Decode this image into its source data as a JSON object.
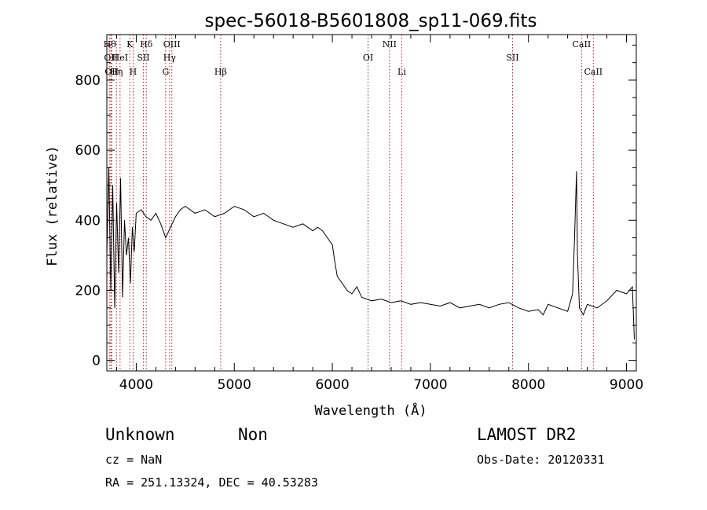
{
  "chart_data": {
    "type": "line",
    "title": "spec-56018-B5601808_sp11-069.fits",
    "xlabel": "Wavelength (Å)",
    "ylabel": "Flux (relative)",
    "xlim": [
      3700,
      9100
    ],
    "ylim": [
      -30,
      930
    ],
    "xticks": [
      4000,
      5000,
      6000,
      7000,
      8000,
      9000
    ],
    "yticks": [
      0,
      200,
      400,
      600,
      800
    ],
    "grid": false,
    "series": [
      {
        "values_description_free": true,
        "x": [
          3700,
          3720,
          3740,
          3760,
          3780,
          3800,
          3820,
          3840,
          3860,
          3880,
          3900,
          3920,
          3940,
          3960,
          3980,
          4000,
          4050,
          4100,
          4150,
          4200,
          4250,
          4300,
          4350,
          4400,
          4450,
          4500,
          4600,
          4700,
          4800,
          4900,
          5000,
          5100,
          5200,
          5300,
          5400,
          5500,
          5600,
          5700,
          5800,
          5850,
          5900,
          5950,
          6000,
          6020,
          6050,
          6100,
          6150,
          6200,
          6250,
          6300,
          6400,
          6500,
          6600,
          6700,
          6800,
          6900,
          7000,
          7100,
          7200,
          7300,
          7400,
          7500,
          7600,
          7700,
          7800,
          7900,
          8000,
          8100,
          8150,
          8200,
          8300,
          8400,
          8450,
          8470,
          8490,
          8500,
          8520,
          8560,
          8600,
          8700,
          8800,
          8900,
          9000,
          9060,
          9080
        ],
        "y": [
          300,
          550,
          200,
          500,
          150,
          450,
          250,
          520,
          180,
          400,
          300,
          350,
          220,
          380,
          310,
          420,
          430,
          410,
          400,
          420,
          390,
          350,
          380,
          410,
          430,
          440,
          420,
          430,
          410,
          420,
          440,
          430,
          410,
          420,
          400,
          390,
          380,
          390,
          370,
          380,
          370,
          350,
          330,
          290,
          240,
          220,
          200,
          190,
          210,
          180,
          170,
          175,
          165,
          170,
          160,
          165,
          160,
          155,
          165,
          150,
          155,
          160,
          150,
          160,
          165,
          150,
          140,
          145,
          130,
          160,
          150,
          140,
          190,
          350,
          540,
          300,
          150,
          130,
          160,
          150,
          170,
          200,
          190,
          210,
          60
        ]
      }
    ],
    "annotations": [
      {
        "x": 3730,
        "label": "Hθ",
        "row": 0
      },
      {
        "x": 3742,
        "label": "OII",
        "row": 1
      },
      {
        "x": 3750,
        "label": "OII",
        "row": 2
      },
      {
        "x": 3798,
        "label": "Hη",
        "row": 2
      },
      {
        "x": 3835,
        "label": "HeI",
        "row": 1
      },
      {
        "x": 3934,
        "label": "K",
        "row": 0
      },
      {
        "x": 3968,
        "label": "H",
        "row": 2
      },
      {
        "x": 4072,
        "label": "SII",
        "row": 1
      },
      {
        "x": 4102,
        "label": "Hδ",
        "row": 0
      },
      {
        "x": 4300,
        "label": "G",
        "row": 2
      },
      {
        "x": 4340,
        "label": "Hγ",
        "row": 1
      },
      {
        "x": 4363,
        "label": "OIII",
        "row": 0
      },
      {
        "x": 4861,
        "label": "Hβ",
        "row": 2
      },
      {
        "x": 6364,
        "label": "OI",
        "row": 1
      },
      {
        "x": 6583,
        "label": "NII",
        "row": 0
      },
      {
        "x": 6708,
        "label": "Li",
        "row": 2
      },
      {
        "x": 7838,
        "label": "SII",
        "row": 1
      },
      {
        "x": 8542,
        "label": "CaII",
        "row": 0
      },
      {
        "x": 8662,
        "label": "CaII",
        "row": 2
      }
    ]
  },
  "info": {
    "class": "Unknown",
    "subclass": "Non",
    "survey": "LAMOST DR2",
    "cz": "cz = NaN",
    "obs_date": "Obs-Date: 20120331",
    "coords": "RA = 251.13324, DEC =  40.53283"
  }
}
